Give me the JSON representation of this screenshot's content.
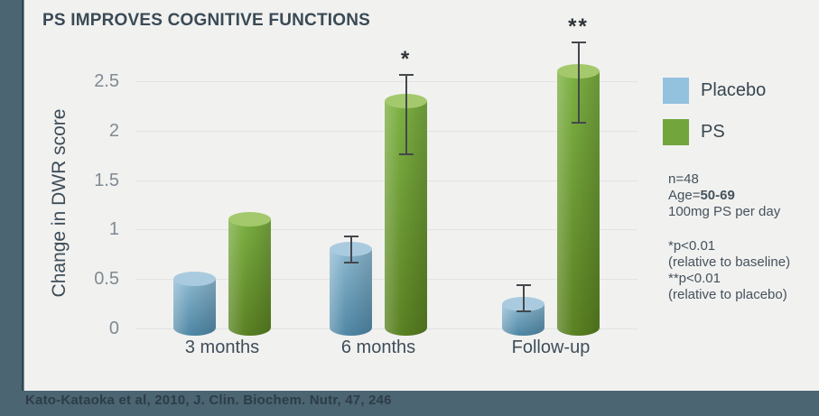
{
  "title": "PS IMPROVES COGNITIVE FUNCTIONS",
  "chart_data": {
    "type": "bar",
    "title": "PS IMPROVES COGNITIVE FUNCTIONS",
    "ylabel": "Change in DWR score",
    "xlabel": "",
    "categories": [
      "3 months",
      "6 months",
      "Follow-up"
    ],
    "series": [
      {
        "name": "Placebo",
        "color": "#93c2df",
        "values": [
          0.5,
          0.8,
          0.25
        ],
        "error_bars": [
          null,
          {
            "low": 0.66,
            "high": 0.94
          },
          {
            "low": 0.16,
            "high": 0.45
          }
        ],
        "annotations": [
          "",
          "",
          ""
        ]
      },
      {
        "name": "PS",
        "color": "#72a53c",
        "values": [
          1.1,
          2.3,
          2.6
        ],
        "error_bars": [
          null,
          {
            "low": 1.75,
            "high": 2.57
          },
          {
            "low": 2.07,
            "high": 2.9
          }
        ],
        "annotations": [
          "",
          "*",
          "**"
        ]
      }
    ],
    "yticks": [
      0,
      0.5,
      1,
      1.5,
      2,
      2.5
    ],
    "ylim": [
      0,
      2.75
    ],
    "grid": true,
    "legend_position": "right"
  },
  "legend": {
    "items": [
      {
        "label": "Placebo",
        "color": "#93c2df"
      },
      {
        "label": "PS",
        "color": "#72a53c"
      }
    ]
  },
  "study_info": {
    "n": "n=48",
    "age_prefix": "Age=",
    "age_value": "50-69",
    "dose": "100mg PS per day"
  },
  "significance_notes": {
    "star_def": "*p<0.01",
    "star_scope": "(relative to baseline)",
    "double_star_def": "**p<0.01",
    "double_star_scope": "(relative to placebo)"
  },
  "citation": "Kato-Kataoka et al, 2010, J. Clin. Biochem. Nutr, 47, 246",
  "colors": {
    "frame_background": "#4b6572",
    "panel_background": "#f1f1f0",
    "title_text": "#3a4a55",
    "gridline": "#e1e3e4",
    "placebo_bar": "#93c2df",
    "ps_bar": "#72a53c",
    "error_bar": "#44484c"
  }
}
